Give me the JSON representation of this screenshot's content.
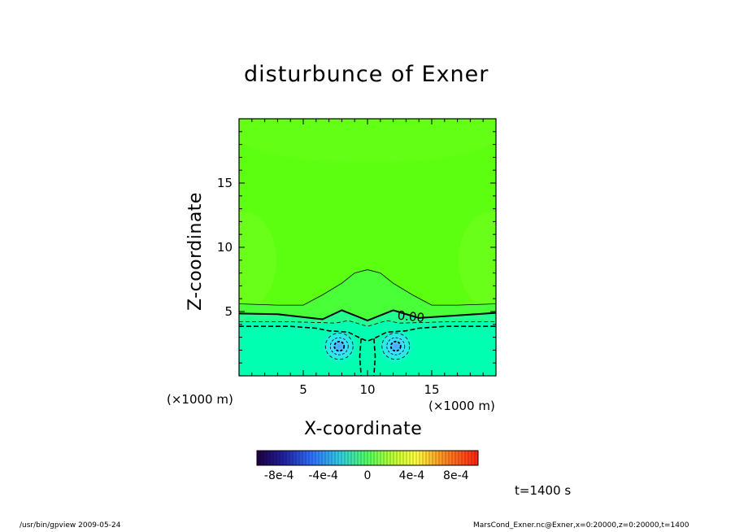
{
  "chart_data": {
    "type": "heatmap",
    "title": "disturbunce of Exner",
    "xlabel": "X-coordinate",
    "ylabel": "Z-coordinate",
    "x_unit_label": "(×1000 m)",
    "y_unit_label": "(×1000 m)",
    "xlim": [
      0,
      20
    ],
    "ylim": [
      0,
      20
    ],
    "xticks": [
      5,
      10,
      15
    ],
    "yticks": [
      5,
      10,
      15
    ],
    "time_label": "t=1400 s",
    "contour_label": "0.00",
    "colorbar": {
      "vmin": -0.001,
      "vmax": 0.001,
      "tick_values": [
        -0.0008,
        -0.0004,
        0,
        0.0004,
        0.0008
      ],
      "tick_labels": [
        "-8e-4",
        "-4e-4",
        "0",
        "4e-4",
        "8e-4"
      ]
    },
    "field_features": {
      "background_upper": 8e-05,
      "background_lower": -5e-05,
      "interface_z": 4.0,
      "dome_center_x": 10,
      "dome_peak_z": 8.2,
      "minima": [
        {
          "x": 7.8,
          "z": 2.3,
          "value": -0.00045
        },
        {
          "x": 12.2,
          "z": 2.3,
          "value": -0.00045
        }
      ]
    }
  },
  "footer": {
    "left": "/usr/bin/gpview   2009-05-24",
    "right": "MarsCond_Exner.nc@Exner,x=0:20000,z=0:20000,t=1400"
  }
}
